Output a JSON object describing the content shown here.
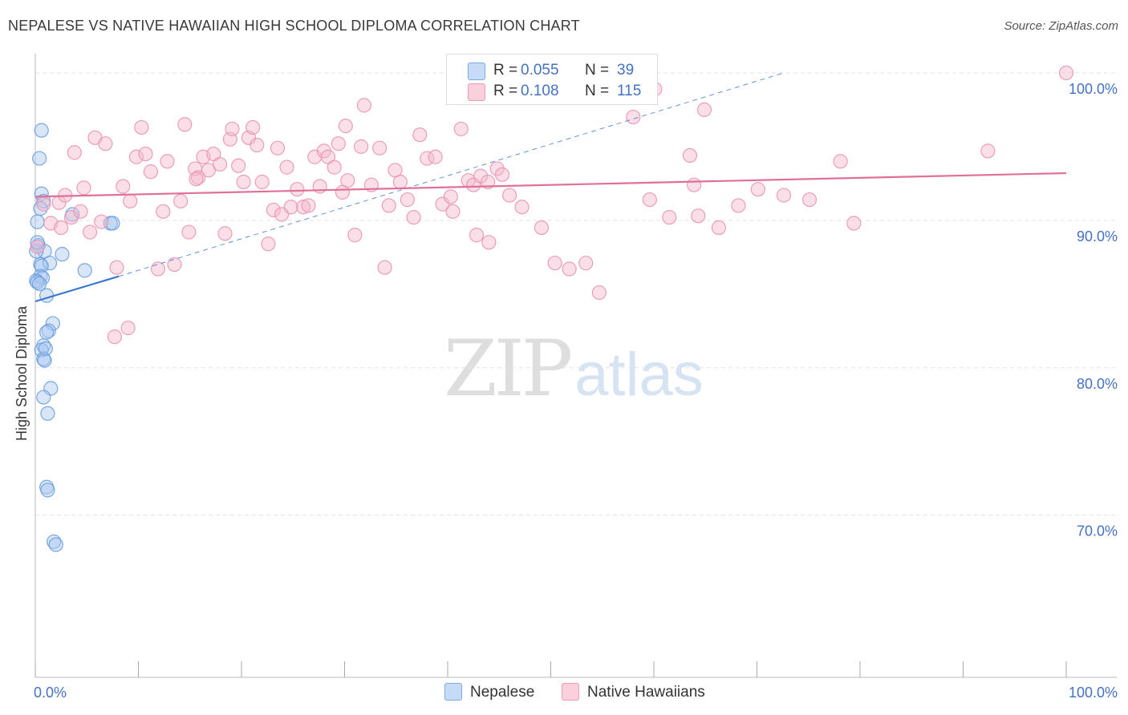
{
  "title": "NEPALESE VS NATIVE HAWAIIAN HIGH SCHOOL DIPLOMA CORRELATION CHART",
  "source": "Source: ZipAtlas.com",
  "watermark": {
    "zip": "ZIP",
    "atlas": "atlas"
  },
  "legend": {
    "rows": [
      {
        "r_label": "R =",
        "r_value": "0.055",
        "n_label": "N =",
        "n_value": "39",
        "color": "#a9c8f0"
      },
      {
        "r_label": "R =",
        "r_value": "0.108",
        "n_label": "N =",
        "n_value": "115",
        "color": "#f5b8cb"
      }
    ]
  },
  "bottom_legend": [
    {
      "label": "Nepalese",
      "color": "#a9c8f0"
    },
    {
      "label": "Native Hawaiians",
      "color": "#f5b8cb"
    }
  ],
  "chart_data": {
    "type": "scatter",
    "ylabel": "High School Diploma",
    "xlabel": "",
    "xlim": [
      0,
      100
    ],
    "ylim": [
      59,
      101.3
    ],
    "x_tick_labels": [
      "0.0%",
      "100.0%"
    ],
    "y_ticks": [
      {
        "value": 70,
        "label": "70.0%"
      },
      {
        "value": 80,
        "label": "80.0%"
      },
      {
        "value": 90,
        "label": "90.0%"
      },
      {
        "value": 100,
        "label": "100.0%"
      }
    ],
    "grid": "horizontal dashed",
    "series": [
      {
        "name": "Nepalese",
        "color": "#a9c8f0",
        "stroke": "#6a9fe0",
        "trend": {
          "x0": 0,
          "y0": 84.5,
          "x1": 8.1,
          "y1": 86.2,
          "color": "#3a78d0",
          "dashed_to": {
            "x": 72.6,
            "y": 100
          }
        },
        "points": [
          [
            0.6,
            96.1
          ],
          [
            0.4,
            94.2
          ],
          [
            0.6,
            91.8
          ],
          [
            0.8,
            91.3
          ],
          [
            0.5,
            90.8
          ],
          [
            3.6,
            90.4
          ],
          [
            0.2,
            89.9
          ],
          [
            7.3,
            89.8
          ],
          [
            7.5,
            89.8
          ],
          [
            0.3,
            88.3
          ],
          [
            0.9,
            87.9
          ],
          [
            2.6,
            87.7
          ],
          [
            0.1,
            87.9
          ],
          [
            0.5,
            87.0
          ],
          [
            1.4,
            87.1
          ],
          [
            0.6,
            86.9
          ],
          [
            4.8,
            86.6
          ],
          [
            0.5,
            86.2
          ],
          [
            0.7,
            86.1
          ],
          [
            0.1,
            85.9
          ],
          [
            0.2,
            85.8
          ],
          [
            1.1,
            84.9
          ],
          [
            1.7,
            83.0
          ],
          [
            1.3,
            82.5
          ],
          [
            1.1,
            82.4
          ],
          [
            0.8,
            81.5
          ],
          [
            0.6,
            81.2
          ],
          [
            0.8,
            80.6
          ],
          [
            1.5,
            78.6
          ],
          [
            0.8,
            78.0
          ],
          [
            1.2,
            76.9
          ],
          [
            1.1,
            71.9
          ],
          [
            1.2,
            71.7
          ],
          [
            1.8,
            68.2
          ],
          [
            2.0,
            68.0
          ],
          [
            0.2,
            88.5
          ],
          [
            0.4,
            85.7
          ],
          [
            0.9,
            80.5
          ],
          [
            1.0,
            81.3
          ]
        ]
      },
      {
        "name": "Native Hawaiians",
        "color": "#f5b8cb",
        "stroke": "#e995b0",
        "trend": {
          "x0": 0,
          "y0": 91.6,
          "x1": 100,
          "y1": 93.2,
          "color": "#e07099"
        },
        "points": [
          [
            0.2,
            88.2
          ],
          [
            0.8,
            91.1
          ],
          [
            1.5,
            89.8
          ],
          [
            2.3,
            91.2
          ],
          [
            2.5,
            89.5
          ],
          [
            2.9,
            91.7
          ],
          [
            3.5,
            90.2
          ],
          [
            3.8,
            94.6
          ],
          [
            4.4,
            90.6
          ],
          [
            4.7,
            92.2
          ],
          [
            5.3,
            89.2
          ],
          [
            5.8,
            95.6
          ],
          [
            6.4,
            89.9
          ],
          [
            6.8,
            95.2
          ],
          [
            7.7,
            82.1
          ],
          [
            7.9,
            86.8
          ],
          [
            8.5,
            92.3
          ],
          [
            9.0,
            82.7
          ],
          [
            9.2,
            91.3
          ],
          [
            9.8,
            94.3
          ],
          [
            10.3,
            96.3
          ],
          [
            10.7,
            94.5
          ],
          [
            11.2,
            93.3
          ],
          [
            11.9,
            86.7
          ],
          [
            12.4,
            90.6
          ],
          [
            12.8,
            94.0
          ],
          [
            13.5,
            87.0
          ],
          [
            14.1,
            91.3
          ],
          [
            14.5,
            96.5
          ],
          [
            14.9,
            89.2
          ],
          [
            15.5,
            93.5
          ],
          [
            15.8,
            92.9
          ],
          [
            16.3,
            94.3
          ],
          [
            16.8,
            93.4
          ],
          [
            17.3,
            94.5
          ],
          [
            17.9,
            93.8
          ],
          [
            18.4,
            89.1
          ],
          [
            18.9,
            95.5
          ],
          [
            19.1,
            96.2
          ],
          [
            19.7,
            93.7
          ],
          [
            20.2,
            92.6
          ],
          [
            20.7,
            95.6
          ],
          [
            21.1,
            96.3
          ],
          [
            21.5,
            95.1
          ],
          [
            22.0,
            92.6
          ],
          [
            22.6,
            88.4
          ],
          [
            23.1,
            90.7
          ],
          [
            23.5,
            94.9
          ],
          [
            23.9,
            90.4
          ],
          [
            24.4,
            93.6
          ],
          [
            24.8,
            90.9
          ],
          [
            25.4,
            92.1
          ],
          [
            26.0,
            90.9
          ],
          [
            26.5,
            91.0
          ],
          [
            27.1,
            94.3
          ],
          [
            27.6,
            92.3
          ],
          [
            28.0,
            94.7
          ],
          [
            28.4,
            94.3
          ],
          [
            29.0,
            93.6
          ],
          [
            29.4,
            95.2
          ],
          [
            29.8,
            91.9
          ],
          [
            30.3,
            92.7
          ],
          [
            31.0,
            89.0
          ],
          [
            31.6,
            95.0
          ],
          [
            31.9,
            97.8
          ],
          [
            32.6,
            92.4
          ],
          [
            33.4,
            94.9
          ],
          [
            33.9,
            86.8
          ],
          [
            34.3,
            91.0
          ],
          [
            34.9,
            93.4
          ],
          [
            35.4,
            92.6
          ],
          [
            36.1,
            91.4
          ],
          [
            36.7,
            90.2
          ],
          [
            38.0,
            94.2
          ],
          [
            38.8,
            94.3
          ],
          [
            39.5,
            91.1
          ],
          [
            40.3,
            91.6
          ],
          [
            40.5,
            90.6
          ],
          [
            41.3,
            96.2
          ],
          [
            42.0,
            92.7
          ],
          [
            42.5,
            92.4
          ],
          [
            42.8,
            89.0
          ],
          [
            43.2,
            93.0
          ],
          [
            43.9,
            92.6
          ],
          [
            44.0,
            88.5
          ],
          [
            44.8,
            93.5
          ],
          [
            45.3,
            93.1
          ],
          [
            46.0,
            91.7
          ],
          [
            47.2,
            90.9
          ],
          [
            49.1,
            89.5
          ],
          [
            50.4,
            87.1
          ],
          [
            51.8,
            86.7
          ],
          [
            53.4,
            87.1
          ],
          [
            54.7,
            85.1
          ],
          [
            58.0,
            97.0
          ],
          [
            59.2,
            100.0
          ],
          [
            60.1,
            98.9
          ],
          [
            59.6,
            91.4
          ],
          [
            61.5,
            90.2
          ],
          [
            63.5,
            94.4
          ],
          [
            63.9,
            92.4
          ],
          [
            64.3,
            90.3
          ],
          [
            64.9,
            97.5
          ],
          [
            66.3,
            89.5
          ],
          [
            68.2,
            91.0
          ],
          [
            70.1,
            92.1
          ],
          [
            72.6,
            91.7
          ],
          [
            75.1,
            91.4
          ],
          [
            78.1,
            94.0
          ],
          [
            79.4,
            89.8
          ],
          [
            92.4,
            94.7
          ],
          [
            100.0,
            100.0
          ],
          [
            15.6,
            92.8
          ],
          [
            30.1,
            96.4
          ],
          [
            37.3,
            95.8
          ]
        ]
      }
    ]
  }
}
